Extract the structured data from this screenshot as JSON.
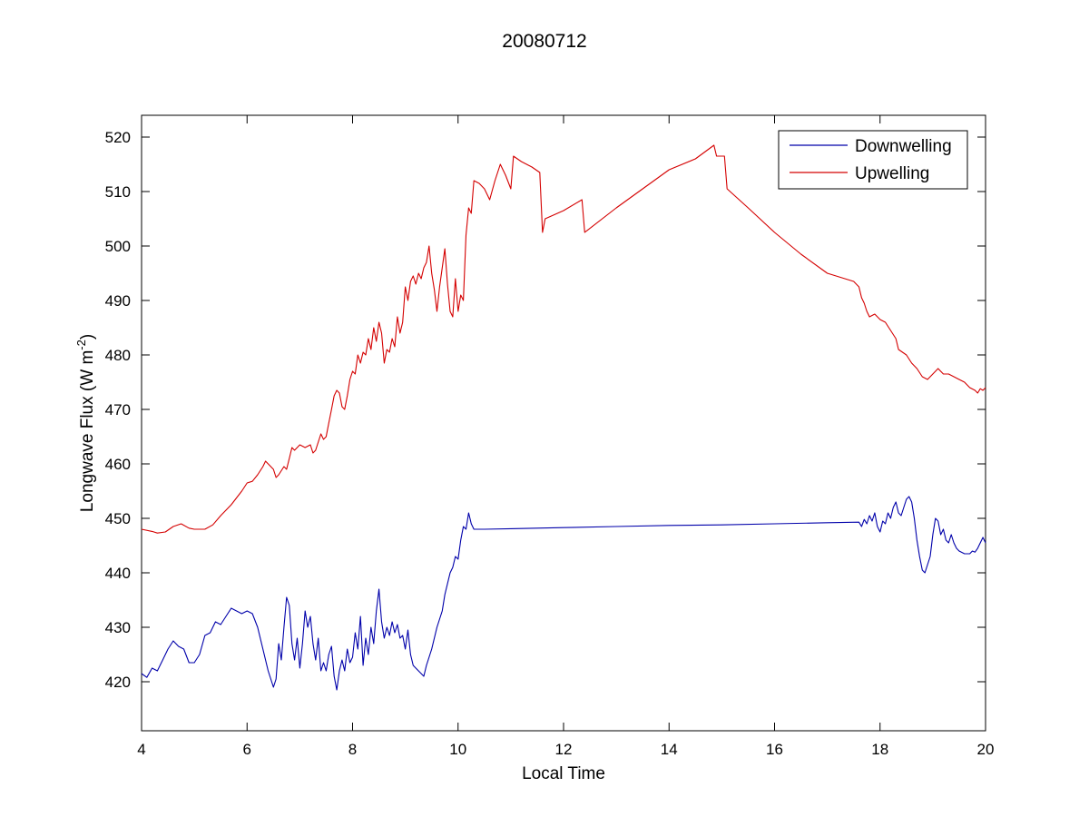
{
  "chart_data": {
    "type": "line",
    "title": "20080712",
    "xlabel": "Local Time",
    "ylabel": "Longwave Flux (W m",
    "ylabel_sup": "-2",
    "ylabel_close": ")",
    "xlim": [
      4,
      20
    ],
    "ylim": [
      411,
      524
    ],
    "xticks": [
      4,
      6,
      8,
      10,
      12,
      14,
      16,
      18,
      20
    ],
    "yticks": [
      420,
      430,
      440,
      450,
      460,
      470,
      480,
      490,
      500,
      510,
      520
    ],
    "grid": false,
    "legend_position": "top-right",
    "series": [
      {
        "name": "Downwelling",
        "color": "#0000aa",
        "points": [
          [
            4.0,
            421.5
          ],
          [
            4.1,
            420.8
          ],
          [
            4.2,
            422.5
          ],
          [
            4.3,
            422.0
          ],
          [
            4.4,
            424.0
          ],
          [
            4.5,
            426.0
          ],
          [
            4.6,
            427.5
          ],
          [
            4.7,
            426.5
          ],
          [
            4.8,
            426.0
          ],
          [
            4.9,
            423.5
          ],
          [
            5.0,
            423.5
          ],
          [
            5.1,
            425.0
          ],
          [
            5.2,
            428.5
          ],
          [
            5.3,
            429.0
          ],
          [
            5.4,
            431.0
          ],
          [
            5.5,
            430.5
          ],
          [
            5.6,
            432.0
          ],
          [
            5.7,
            433.5
          ],
          [
            5.8,
            433.0
          ],
          [
            5.9,
            432.5
          ],
          [
            6.0,
            433.0
          ],
          [
            6.1,
            432.5
          ],
          [
            6.2,
            430.0
          ],
          [
            6.3,
            426.0
          ],
          [
            6.4,
            422.0
          ],
          [
            6.5,
            419.0
          ],
          [
            6.55,
            420.5
          ],
          [
            6.6,
            427.0
          ],
          [
            6.65,
            424.0
          ],
          [
            6.7,
            430.0
          ],
          [
            6.75,
            435.5
          ],
          [
            6.8,
            434.0
          ],
          [
            6.85,
            427.0
          ],
          [
            6.9,
            424.0
          ],
          [
            6.95,
            428.0
          ],
          [
            7.0,
            422.5
          ],
          [
            7.05,
            427.0
          ],
          [
            7.1,
            433.0
          ],
          [
            7.15,
            430.0
          ],
          [
            7.2,
            432.0
          ],
          [
            7.25,
            427.0
          ],
          [
            7.3,
            424.0
          ],
          [
            7.35,
            428.0
          ],
          [
            7.4,
            422.0
          ],
          [
            7.45,
            423.5
          ],
          [
            7.5,
            422.0
          ],
          [
            7.55,
            425.0
          ],
          [
            7.6,
            426.5
          ],
          [
            7.65,
            421.0
          ],
          [
            7.7,
            418.5
          ],
          [
            7.75,
            422.0
          ],
          [
            7.8,
            424.0
          ],
          [
            7.85,
            422.0
          ],
          [
            7.9,
            426.0
          ],
          [
            7.95,
            423.5
          ],
          [
            8.0,
            424.5
          ],
          [
            8.05,
            429.0
          ],
          [
            8.1,
            426.0
          ],
          [
            8.15,
            432.0
          ],
          [
            8.2,
            423.0
          ],
          [
            8.25,
            428.0
          ],
          [
            8.3,
            425.0
          ],
          [
            8.35,
            430.0
          ],
          [
            8.4,
            427.0
          ],
          [
            8.45,
            433.0
          ],
          [
            8.5,
            437.0
          ],
          [
            8.55,
            431.0
          ],
          [
            8.6,
            428.0
          ],
          [
            8.65,
            430.0
          ],
          [
            8.7,
            428.5
          ],
          [
            8.75,
            431.0
          ],
          [
            8.8,
            429.0
          ],
          [
            8.85,
            430.5
          ],
          [
            8.9,
            428.0
          ],
          [
            8.95,
            428.5
          ],
          [
            9.0,
            426.0
          ],
          [
            9.05,
            429.5
          ],
          [
            9.1,
            425.0
          ],
          [
            9.15,
            423.0
          ],
          [
            9.2,
            422.5
          ],
          [
            9.3,
            421.5
          ],
          [
            9.35,
            421.0
          ],
          [
            9.4,
            423.0
          ],
          [
            9.5,
            426.0
          ],
          [
            9.6,
            430.0
          ],
          [
            9.7,
            433.0
          ],
          [
            9.75,
            436.0
          ],
          [
            9.8,
            438.0
          ],
          [
            9.85,
            440.0
          ],
          [
            9.9,
            441.0
          ],
          [
            9.95,
            443.0
          ],
          [
            10.0,
            442.5
          ],
          [
            10.05,
            446.0
          ],
          [
            10.1,
            448.5
          ],
          [
            10.15,
            448.0
          ],
          [
            10.2,
            451.0
          ],
          [
            10.25,
            449.0
          ],
          [
            10.3,
            448.0
          ],
          [
            10.5,
            448.0
          ],
          [
            11.0,
            448.1
          ],
          [
            12.0,
            448.3
          ],
          [
            13.0,
            448.5
          ],
          [
            14.0,
            448.7
          ],
          [
            15.0,
            448.8
          ],
          [
            16.0,
            449.0
          ],
          [
            17.0,
            449.2
          ],
          [
            17.6,
            449.3
          ],
          [
            17.65,
            448.5
          ],
          [
            17.7,
            449.8
          ],
          [
            17.75,
            449.0
          ],
          [
            17.8,
            450.5
          ],
          [
            17.85,
            449.5
          ],
          [
            17.9,
            451.0
          ],
          [
            17.95,
            448.5
          ],
          [
            18.0,
            447.5
          ],
          [
            18.05,
            449.5
          ],
          [
            18.1,
            449.0
          ],
          [
            18.15,
            451.0
          ],
          [
            18.2,
            450.0
          ],
          [
            18.25,
            452.0
          ],
          [
            18.3,
            453.0
          ],
          [
            18.35,
            451.0
          ],
          [
            18.4,
            450.5
          ],
          [
            18.45,
            452.0
          ],
          [
            18.5,
            453.5
          ],
          [
            18.55,
            454.0
          ],
          [
            18.6,
            453.0
          ],
          [
            18.65,
            450.0
          ],
          [
            18.7,
            446.0
          ],
          [
            18.75,
            443.0
          ],
          [
            18.8,
            440.5
          ],
          [
            18.85,
            440.0
          ],
          [
            18.9,
            441.5
          ],
          [
            18.95,
            443.0
          ],
          [
            19.0,
            447.0
          ],
          [
            19.05,
            450.0
          ],
          [
            19.1,
            449.5
          ],
          [
            19.15,
            447.0
          ],
          [
            19.2,
            448.0
          ],
          [
            19.25,
            446.0
          ],
          [
            19.3,
            445.5
          ],
          [
            19.35,
            447.0
          ],
          [
            19.4,
            445.5
          ],
          [
            19.45,
            444.5
          ],
          [
            19.5,
            444.0
          ],
          [
            19.6,
            443.5
          ],
          [
            19.7,
            443.5
          ],
          [
            19.75,
            444.0
          ],
          [
            19.8,
            443.8
          ],
          [
            19.85,
            444.5
          ],
          [
            19.9,
            445.5
          ],
          [
            19.95,
            446.5
          ],
          [
            20.0,
            445.5
          ]
        ]
      },
      {
        "name": "Upwelling",
        "color": "#d40000",
        "points": [
          [
            4.0,
            448.0
          ],
          [
            4.2,
            447.6
          ],
          [
            4.3,
            447.3
          ],
          [
            4.45,
            447.5
          ],
          [
            4.6,
            448.5
          ],
          [
            4.75,
            449.0
          ],
          [
            4.9,
            448.2
          ],
          [
            5.0,
            448.0
          ],
          [
            5.2,
            448.0
          ],
          [
            5.35,
            448.8
          ],
          [
            5.5,
            450.5
          ],
          [
            5.7,
            452.5
          ],
          [
            5.9,
            455.0
          ],
          [
            6.0,
            456.5
          ],
          [
            6.1,
            456.8
          ],
          [
            6.2,
            458.0
          ],
          [
            6.3,
            459.5
          ],
          [
            6.35,
            460.5
          ],
          [
            6.4,
            460.0
          ],
          [
            6.5,
            459.0
          ],
          [
            6.55,
            457.5
          ],
          [
            6.6,
            458.0
          ],
          [
            6.7,
            459.5
          ],
          [
            6.75,
            459.0
          ],
          [
            6.8,
            461.0
          ],
          [
            6.85,
            463.0
          ],
          [
            6.9,
            462.5
          ],
          [
            7.0,
            463.5
          ],
          [
            7.1,
            463.0
          ],
          [
            7.2,
            463.5
          ],
          [
            7.25,
            462.0
          ],
          [
            7.3,
            462.5
          ],
          [
            7.35,
            464.0
          ],
          [
            7.4,
            465.5
          ],
          [
            7.45,
            464.5
          ],
          [
            7.5,
            465.0
          ],
          [
            7.55,
            467.5
          ],
          [
            7.6,
            470.0
          ],
          [
            7.65,
            472.5
          ],
          [
            7.7,
            473.5
          ],
          [
            7.75,
            473.0
          ],
          [
            7.8,
            470.5
          ],
          [
            7.85,
            470.0
          ],
          [
            7.9,
            472.5
          ],
          [
            7.95,
            475.5
          ],
          [
            8.0,
            477.0
          ],
          [
            8.05,
            476.5
          ],
          [
            8.1,
            480.0
          ],
          [
            8.15,
            478.5
          ],
          [
            8.2,
            480.5
          ],
          [
            8.25,
            480.0
          ],
          [
            8.3,
            483.0
          ],
          [
            8.35,
            481.0
          ],
          [
            8.4,
            485.0
          ],
          [
            8.45,
            482.5
          ],
          [
            8.5,
            486.0
          ],
          [
            8.55,
            484.0
          ],
          [
            8.6,
            478.5
          ],
          [
            8.65,
            481.0
          ],
          [
            8.7,
            480.5
          ],
          [
            8.75,
            483.0
          ],
          [
            8.8,
            481.5
          ],
          [
            8.85,
            487.0
          ],
          [
            8.9,
            484.0
          ],
          [
            8.95,
            486.0
          ],
          [
            9.0,
            492.5
          ],
          [
            9.05,
            490.0
          ],
          [
            9.1,
            493.5
          ],
          [
            9.15,
            494.5
          ],
          [
            9.2,
            493.0
          ],
          [
            9.25,
            495.0
          ],
          [
            9.3,
            494.0
          ],
          [
            9.35,
            496.0
          ],
          [
            9.4,
            497.0
          ],
          [
            9.45,
            500.0
          ],
          [
            9.5,
            495.0
          ],
          [
            9.55,
            492.0
          ],
          [
            9.6,
            488.0
          ],
          [
            9.65,
            492.5
          ],
          [
            9.7,
            496.0
          ],
          [
            9.75,
            499.5
          ],
          [
            9.8,
            493.0
          ],
          [
            9.85,
            488.0
          ],
          [
            9.9,
            487.0
          ],
          [
            9.95,
            494.0
          ],
          [
            10.0,
            488.0
          ],
          [
            10.05,
            491.0
          ],
          [
            10.1,
            490.0
          ],
          [
            10.15,
            502.0
          ],
          [
            10.2,
            507.0
          ],
          [
            10.25,
            506.0
          ],
          [
            10.3,
            512.0
          ],
          [
            10.4,
            511.5
          ],
          [
            10.5,
            510.5
          ],
          [
            10.6,
            508.5
          ],
          [
            10.7,
            512.0
          ],
          [
            10.8,
            515.0
          ],
          [
            10.85,
            514.0
          ],
          [
            10.9,
            513.0
          ],
          [
            11.0,
            510.5
          ],
          [
            11.05,
            516.5
          ],
          [
            11.2,
            515.5
          ],
          [
            11.4,
            514.5
          ],
          [
            11.55,
            513.5
          ],
          [
            11.6,
            502.5
          ],
          [
            11.65,
            505.0
          ],
          [
            12.0,
            506.5
          ],
          [
            12.35,
            508.5
          ],
          [
            12.4,
            502.5
          ],
          [
            13.0,
            507.0
          ],
          [
            14.0,
            514.0
          ],
          [
            14.5,
            516.0
          ],
          [
            14.85,
            518.5
          ],
          [
            14.9,
            516.5
          ],
          [
            15.05,
            516.5
          ],
          [
            15.1,
            510.5
          ],
          [
            15.5,
            507.0
          ],
          [
            16.0,
            502.5
          ],
          [
            16.5,
            498.5
          ],
          [
            17.0,
            495.0
          ],
          [
            17.5,
            493.5
          ],
          [
            17.6,
            492.5
          ],
          [
            17.65,
            490.5
          ],
          [
            17.7,
            489.5
          ],
          [
            17.75,
            488.0
          ],
          [
            17.8,
            487.0
          ],
          [
            17.9,
            487.5
          ],
          [
            18.0,
            486.5
          ],
          [
            18.1,
            486.0
          ],
          [
            18.2,
            484.5
          ],
          [
            18.3,
            483.0
          ],
          [
            18.35,
            481.0
          ],
          [
            18.5,
            480.0
          ],
          [
            18.6,
            478.5
          ],
          [
            18.7,
            477.5
          ],
          [
            18.8,
            476.0
          ],
          [
            18.9,
            475.5
          ],
          [
            19.0,
            476.5
          ],
          [
            19.1,
            477.5
          ],
          [
            19.2,
            476.5
          ],
          [
            19.3,
            476.5
          ],
          [
            19.4,
            476.0
          ],
          [
            19.5,
            475.5
          ],
          [
            19.6,
            475.0
          ],
          [
            19.7,
            474.0
          ],
          [
            19.8,
            473.5
          ],
          [
            19.85,
            473.0
          ],
          [
            19.9,
            473.8
          ],
          [
            19.95,
            473.5
          ],
          [
            20.0,
            474.0
          ]
        ]
      }
    ]
  }
}
